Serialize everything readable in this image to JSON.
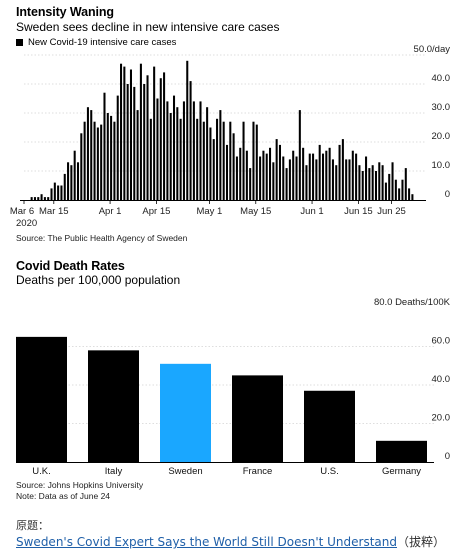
{
  "chart1": {
    "title": "Intensity Waning",
    "subtitle": "Sweden sees decline in new intensive care cases",
    "legend": "New Covid-19 intensive care cases",
    "source": "Source: The Public Health Agency of Sweden",
    "year_label": "2020",
    "unit_label": "50.0/day"
  },
  "chart2": {
    "title": "Covid Death Rates",
    "subtitle": "Deaths per 100,000 population",
    "unit_label": "80.0 Deaths/100K",
    "source_line1": "Source: Johns Hopkins University",
    "source_line2": "Note: Data as of June 24"
  },
  "footer": {
    "label": "原题：",
    "link_text": "Sweden's Covid Expert Says the World Still Doesn't Understand",
    "tag": "（拔粹）"
  },
  "chart_data": [
    {
      "type": "bar",
      "title": "Intensity Waning",
      "subtitle": "Sweden sees decline in new intensive care cases",
      "legend": [
        "New Covid-19 intensive care cases"
      ],
      "x_start": "2020-03-06",
      "x_ticks": [
        "Mar 6",
        "Mar 15",
        "Apr 1",
        "Apr 15",
        "May 1",
        "May 15",
        "Jun 1",
        "Jun 15",
        "Jun 25"
      ],
      "y_ticks": [
        "0",
        "10.0",
        "20.0",
        "30.0",
        "40.0",
        "50.0/day"
      ],
      "ylim": [
        0,
        50
      ],
      "color": "#000000",
      "values": [
        0,
        0,
        1,
        1,
        1,
        2,
        1,
        1,
        4,
        6,
        5,
        5,
        9,
        13,
        12,
        17,
        13,
        23,
        27,
        32,
        31,
        27,
        25,
        26,
        37,
        30,
        29,
        27,
        36,
        47,
        46,
        40,
        45,
        39,
        31,
        47,
        40,
        43,
        28,
        46,
        35,
        42,
        44,
        34,
        30,
        36,
        32,
        28,
        34,
        48,
        41,
        34,
        28,
        34,
        27,
        32,
        25,
        21,
        28,
        31,
        27,
        19,
        27,
        23,
        15,
        18,
        27,
        17,
        11,
        27,
        26,
        15,
        17,
        16,
        18,
        13,
        21,
        19,
        15,
        11,
        14,
        17,
        15,
        31,
        18,
        12,
        16,
        16,
        14,
        19,
        16,
        17,
        18,
        14,
        12,
        19,
        21,
        14,
        14,
        17,
        16,
        12,
        10,
        15,
        11,
        12,
        10,
        13,
        12,
        6,
        9,
        13,
        7,
        4,
        7,
        11,
        4,
        2,
        0
      ]
    },
    {
      "type": "bar",
      "title": "Covid Death Rates",
      "subtitle": "Deaths per 100,000 population",
      "categories": [
        "U.K.",
        "Italy",
        "Sweden",
        "France",
        "U.S.",
        "Germany"
      ],
      "values": [
        65,
        58,
        51,
        45,
        37,
        11
      ],
      "colors": [
        "#000000",
        "#000000",
        "#1aa7ff",
        "#000000",
        "#000000",
        "#000000"
      ],
      "y_ticks": [
        "0",
        "20.0",
        "40.0",
        "60.0",
        "80.0 Deaths/100K"
      ],
      "ylim": [
        0,
        80
      ]
    }
  ]
}
